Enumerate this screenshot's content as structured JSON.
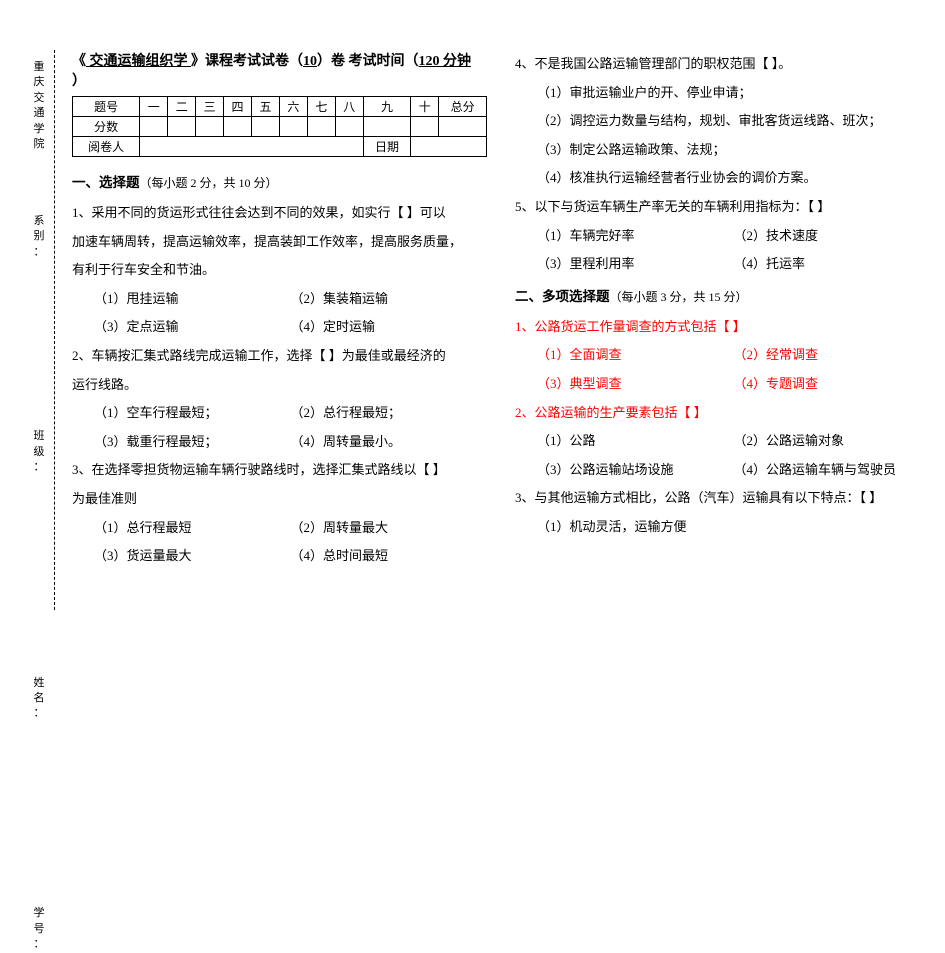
{
  "binding_text": "重庆交通学院    系别：           班级：             姓名：            学号：",
  "title_prefix": "《",
  "title_course": " 交通运输组织学 ",
  "title_mid": "》课程考试试卷（",
  "title_roll": "10",
  "title_mid2": "）卷  考试时间（",
  "title_time": "120 分钟",
  "title_suffix": "  ）",
  "score_table": {
    "row1": [
      "题号",
      "一",
      "二",
      "三",
      "四",
      "五",
      "六",
      "七",
      "八",
      "九",
      "十",
      "总分"
    ],
    "row2_label": "分数",
    "row3_label": "阅卷人",
    "row3_date": "日期"
  },
  "section1": "一、选择题",
  "section1_hint": "（每小题 2 分，共 10 分）",
  "q1_l1": "1、采用不同的货运形式往往会达到不同的效果，如实行【    】可以",
  "q1_l2": "加速车辆周转，提高运输效率，提高装卸工作效率，提高服务质量，",
  "q1_l3": "有利于行车安全和节油。",
  "q1_opts": [
    "（1）甩挂运输",
    "（2）集装箱运输",
    "（3）定点运输",
    "（4）定时运输"
  ],
  "q2_l1": "2、车辆按汇集式路线完成运输工作，选择【    】为最佳或最经济的",
  "q2_l2": "运行线路。",
  "q2_opts": [
    "（1）空车行程最短；",
    "（2）总行程最短；",
    "（3）载重行程最短；",
    "（4）周转量最小。"
  ],
  "q3_l1": "3、在选择零担货物运输车辆行驶路线时，选择汇集式路线以【      】",
  "q3_l2": "为最佳准则",
  "q3_opts": [
    "（1）总行程最短",
    "（2）周转量最大",
    "（3）货运量最大",
    "（4）总时间最短"
  ],
  "q4_l1": "4、不是我国公路运输管理部门的职权范围【    】。",
  "q4_opts": [
    "（1）审批运输业户的开、停业申请；",
    "（2）调控运力数量与结构，规划、审批客货运线路、班次；",
    "（3）制定公路运输政策、法规；",
    "（4）核准执行运输经营者行业协会的调价方案。"
  ],
  "q5_l1": "5、以下与货运车辆生产率无关的车辆利用指标为：【    】",
  "q5_opts": [
    "（1）车辆完好率",
    "（2）技术速度",
    "（3）里程利用率",
    "（4）托运率"
  ],
  "section2": "二、多项选择题",
  "section2_hint": "（每小题 3 分，共 15 分）",
  "m1_l1": "1、公路货运工作量调查的方式包括【        】",
  "m1_opts": [
    "（1）全面调查",
    "（2）经常调查",
    "（3）典型调查",
    "（4）专题调查"
  ],
  "m2_l1": "2、公路运输的生产要素包括【    】",
  "m2_opts": [
    "（1）公路",
    "（2）公路运输对象",
    "（3）公路运输站场设施",
    "（4）公路运输车辆与驾驶员"
  ],
  "m3_l1": "3、与其他运输方式相比，公路（汽车）运输具有以下特点：【        】",
  "m3_opt1": "（1）机动灵活，运输方便"
}
